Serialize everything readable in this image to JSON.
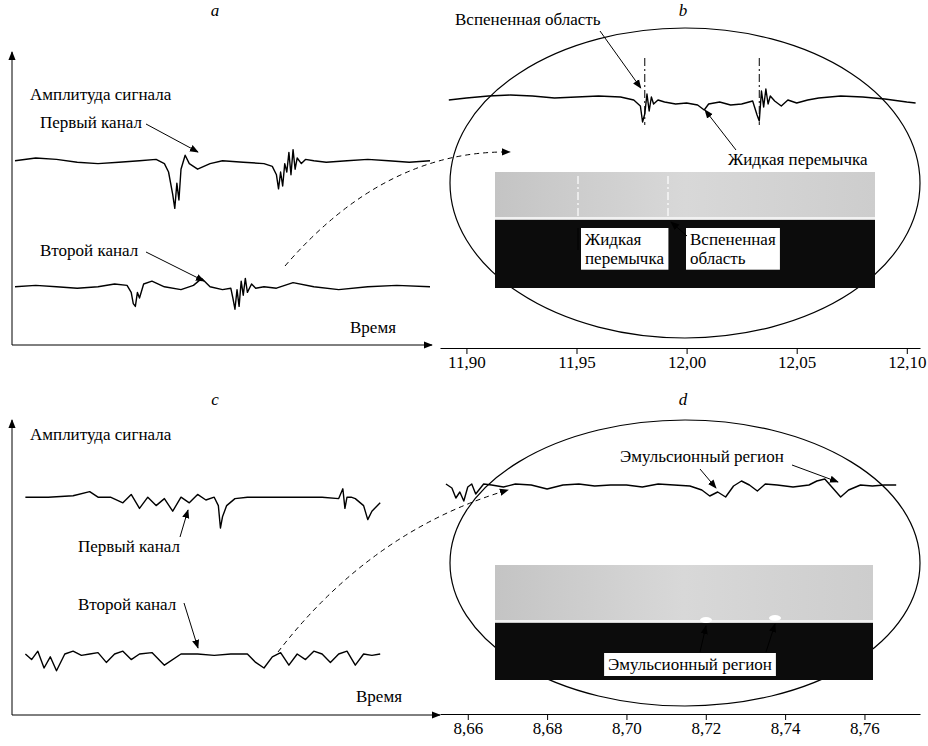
{
  "chart_data": [
    {
      "type": "line",
      "title": "a",
      "y_label": "Амплитуда сигнала",
      "x_label": "Время",
      "xlim": [
        0,
        100
      ],
      "ylim": [
        0,
        10
      ],
      "tick_labels": false,
      "series": [
        {
          "name": "Первый канал",
          "color": "#000000",
          "x": [
            0,
            5,
            10,
            15,
            20,
            25,
            30,
            34,
            36,
            37,
            38,
            38.5,
            39,
            39.5,
            40,
            41,
            42,
            44,
            47,
            50,
            55,
            60,
            62,
            63,
            63.5,
            64,
            64.5,
            65,
            65.5,
            66,
            66.5,
            67,
            67.5,
            68,
            69,
            70,
            72,
            75,
            80,
            85,
            90,
            95,
            100
          ],
          "values": [
            6.4,
            6.5,
            6.45,
            6.35,
            6.3,
            6.35,
            6.4,
            6.45,
            6.3,
            6.0,
            5.2,
            4.7,
            5.6,
            5.0,
            6.1,
            6.6,
            6.3,
            6.1,
            6.3,
            6.4,
            6.35,
            6.3,
            6.2,
            5.9,
            5.4,
            6.0,
            5.5,
            6.3,
            6.0,
            6.7,
            5.9,
            6.8,
            6.1,
            6.5,
            6.3,
            6.45,
            6.4,
            6.35,
            6.4,
            6.45,
            6.4,
            6.35,
            6.4
          ]
        },
        {
          "name": "Второй канал",
          "color": "#000000",
          "x": [
            0,
            5,
            10,
            15,
            20,
            24,
            27,
            28,
            28.5,
            29,
            29.5,
            30,
            31,
            33,
            36,
            40,
            43,
            45,
            47,
            50,
            52,
            52.5,
            53,
            53.5,
            54,
            54.5,
            55,
            55.5,
            56,
            57,
            58,
            60,
            63,
            67,
            72,
            78,
            85,
            92,
            100
          ],
          "values": [
            1.9,
            1.95,
            1.9,
            1.85,
            1.9,
            2.0,
            1.95,
            1.7,
            1.3,
            1.2,
            1.7,
            1.5,
            2.0,
            2.1,
            1.9,
            1.8,
            1.95,
            2.2,
            1.9,
            1.8,
            1.85,
            1.5,
            1.1,
            1.8,
            1.2,
            2.1,
            1.6,
            2.2,
            1.7,
            2.0,
            1.85,
            1.9,
            1.85,
            2.05,
            1.9,
            1.8,
            1.9,
            1.95,
            1.9
          ]
        }
      ]
    },
    {
      "type": "line",
      "title": "b",
      "xlim": [
        11.888,
        12.106
      ],
      "ylim": [
        0,
        10
      ],
      "tick_labels": "x",
      "xticks": [
        {
          "value": 11.9,
          "label": "11,90"
        },
        {
          "value": 11.95,
          "label": "11,95"
        },
        {
          "value": 12.0,
          "label": "12,00"
        },
        {
          "value": 12.05,
          "label": "12,05"
        },
        {
          "value": 12.1,
          "label": "12,10"
        }
      ],
      "vlines": [
        11.981,
        12.033
      ],
      "annotations": [
        "Вспененная область",
        "Жидкая перемычка"
      ],
      "photo_annotations": [
        "Жидкая перемычка",
        "Вспененная область"
      ],
      "series": [
        {
          "color": "#000000",
          "x": [
            11.892,
            11.9,
            11.91,
            11.92,
            11.93,
            11.94,
            11.95,
            11.96,
            11.97,
            11.976,
            11.979,
            11.98,
            11.981,
            11.982,
            11.983,
            11.984,
            11.985,
            11.987,
            11.99,
            11.995,
            12.0,
            12.005,
            12.008,
            12.01,
            12.015,
            12.02,
            12.025,
            12.03,
            12.032,
            12.033,
            12.034,
            12.035,
            12.036,
            12.037,
            12.038,
            12.04,
            12.043,
            12.046,
            12.05,
            12.055,
            12.06,
            12.07,
            12.08,
            12.09,
            12.1,
            12.104
          ],
          "values": [
            5.0,
            5.2,
            5.4,
            5.5,
            5.4,
            5.2,
            5.3,
            5.4,
            5.3,
            5.0,
            4.4,
            2.8,
            3.6,
            5.6,
            3.9,
            5.3,
            4.6,
            5.0,
            4.8,
            4.6,
            4.7,
            4.5,
            4.0,
            4.6,
            4.8,
            4.5,
            4.6,
            4.9,
            3.5,
            2.9,
            5.9,
            4.3,
            6.1,
            4.6,
            5.4,
            4.9,
            4.4,
            5.0,
            4.7,
            5.0,
            5.2,
            5.4,
            5.3,
            5.1,
            4.8,
            4.7
          ]
        }
      ]
    },
    {
      "type": "line",
      "title": "c",
      "y_label": "Амплитуда сигнала",
      "x_label": "Время",
      "xlim": [
        0,
        100
      ],
      "ylim": [
        0,
        10
      ],
      "tick_labels": false,
      "series": [
        {
          "name": "Первый канал",
          "color": "#000000",
          "x": [
            2.5,
            8,
            14,
            18,
            20,
            23,
            26,
            28,
            30,
            32,
            34,
            36,
            38,
            40,
            42,
            44,
            46,
            48,
            49,
            49.5,
            50,
            51,
            53,
            56,
            62,
            68,
            74,
            78,
            79,
            79.5,
            80,
            81,
            82,
            84,
            85,
            86,
            88
          ],
          "values": [
            7.6,
            7.6,
            7.65,
            7.8,
            7.6,
            7.6,
            7.4,
            7.7,
            7.2,
            7.6,
            7.3,
            7.55,
            7.1,
            7.6,
            7.4,
            7.7,
            7.5,
            7.6,
            7.3,
            6.5,
            6.9,
            7.3,
            7.55,
            7.6,
            7.6,
            7.6,
            7.6,
            7.55,
            7.9,
            7.2,
            7.6,
            7.6,
            7.55,
            7.3,
            6.8,
            7.1,
            7.4
          ]
        },
        {
          "name": "Второй канал",
          "color": "#000000",
          "x": [
            2.5,
            4,
            5.5,
            7,
            8.5,
            10,
            12,
            14,
            16,
            18,
            20,
            22,
            24,
            26,
            28,
            30,
            33,
            36,
            40,
            44,
            48,
            52,
            56,
            58,
            60,
            62,
            64,
            66,
            68,
            70,
            72,
            74,
            76,
            78,
            80,
            82,
            84,
            86,
            88
          ],
          "values": [
            2.0,
            1.8,
            2.1,
            1.5,
            1.9,
            1.4,
            2.0,
            2.1,
            1.95,
            2.0,
            2.05,
            1.7,
            2.0,
            2.1,
            1.8,
            2.0,
            2.05,
            1.6,
            2.0,
            2.0,
            1.95,
            2.0,
            2.0,
            1.7,
            1.5,
            1.9,
            2.05,
            1.6,
            2.0,
            1.8,
            2.1,
            2.0,
            1.7,
            2.0,
            2.1,
            1.6,
            2.0,
            1.95,
            2.0
          ]
        }
      ]
    },
    {
      "type": "line",
      "title": "d",
      "xlim": [
        8.653,
        8.774
      ],
      "ylim": [
        0,
        10
      ],
      "tick_labels": "x",
      "xticks": [
        {
          "value": 8.66,
          "label": "8,66"
        },
        {
          "value": 8.68,
          "label": "8,68"
        },
        {
          "value": 8.7,
          "label": "8,70"
        },
        {
          "value": 8.72,
          "label": "8,72"
        },
        {
          "value": 8.74,
          "label": "8,74"
        },
        {
          "value": 8.76,
          "label": "8,76"
        }
      ],
      "annotations": [
        "Эмульсионный регион"
      ],
      "photo_annotations": [
        "Эмульсионный регион"
      ],
      "series": [
        {
          "color": "#000000",
          "x": [
            8.6545,
            8.656,
            8.657,
            8.658,
            8.659,
            8.66,
            8.661,
            8.662,
            8.664,
            8.666,
            8.669,
            8.672,
            8.676,
            8.68,
            8.684,
            8.688,
            8.692,
            8.696,
            8.7,
            8.704,
            8.708,
            8.712,
            8.716,
            8.719,
            8.721,
            8.723,
            8.725,
            8.727,
            8.729,
            8.731,
            8.733,
            8.735,
            8.738,
            8.742,
            8.746,
            8.748,
            8.75,
            8.752,
            8.754,
            8.756,
            8.759,
            8.762,
            8.765,
            8.768
          ],
          "values": [
            5.6,
            5.2,
            4.2,
            4.8,
            3.9,
            5.3,
            5.6,
            4.6,
            5.6,
            5.5,
            5.3,
            5.6,
            5.5,
            5.1,
            5.5,
            5.6,
            5.4,
            5.5,
            5.5,
            5.3,
            5.6,
            5.5,
            5.4,
            5.0,
            4.4,
            4.8,
            4.3,
            5.4,
            5.9,
            5.5,
            4.9,
            5.6,
            5.5,
            5.3,
            5.5,
            5.9,
            6.1,
            5.2,
            4.3,
            5.0,
            5.5,
            5.4,
            5.5,
            5.5
          ]
        }
      ]
    }
  ]
}
